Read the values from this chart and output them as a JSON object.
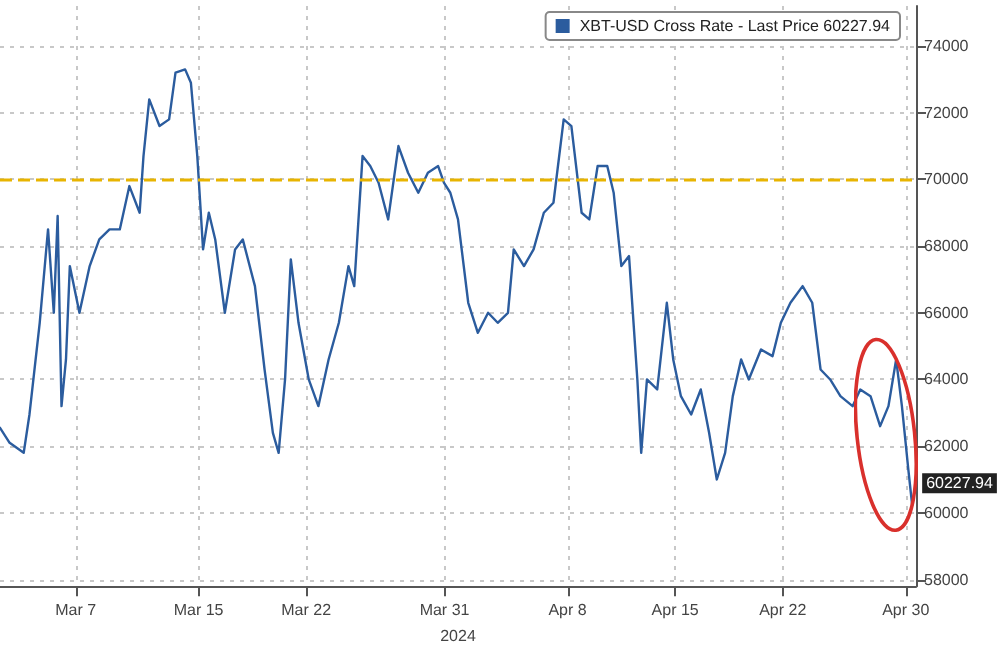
{
  "chart_data": {
    "type": "line",
    "xlabel": "2024",
    "x": [
      "2024-03-02T02:00",
      "2024-03-02T17:00",
      "2024-03-03T15:00",
      "2024-03-04T00:00",
      "2024-03-04T16:00",
      "2024-03-05T05:00",
      "2024-03-05T14:00",
      "2024-03-05T20:00",
      "2024-03-06T02:00",
      "2024-03-06T09:00",
      "2024-03-06T15:00",
      "2024-03-07T06:00",
      "2024-03-07T22:00",
      "2024-03-08T13:00",
      "2024-03-09T05:00",
      "2024-03-09T21:00",
      "2024-03-10T12:00",
      "2024-03-11T04:00",
      "2024-03-11T10:00",
      "2024-03-11T19:00",
      "2024-03-12T11:00",
      "2024-03-13T02:00",
      "2024-03-13T12:00",
      "2024-03-14T03:00",
      "2024-03-14T12:00",
      "2024-03-14T22:00",
      "2024-03-15T07:00",
      "2024-03-15T16:00",
      "2024-03-16T02:00",
      "2024-03-16T17:00",
      "2024-03-17T09:00",
      "2024-03-17T21:00",
      "2024-03-18T16:00",
      "2024-03-19T07:00",
      "2024-03-19T20:00",
      "2024-03-20T05:00",
      "2024-03-20T15:00",
      "2024-03-21T00:00",
      "2024-03-21T12:00",
      "2024-03-22T04:00",
      "2024-03-22T19:00",
      "2024-03-23T11:00",
      "2024-03-24T03:00",
      "2024-03-24T18:00",
      "2024-03-25T03:00",
      "2024-03-25T16:00",
      "2024-03-26T04:00",
      "2024-03-26T17:00",
      "2024-03-27T08:00",
      "2024-03-28T00:00",
      "2024-03-28T15:00",
      "2024-03-29T07:00",
      "2024-03-29T22:00",
      "2024-03-30T14:00",
      "2024-03-30T23:00",
      "2024-03-31T09:00",
      "2024-03-31T21:00",
      "2024-04-01T13:00",
      "2024-04-02T04:00",
      "2024-04-02T20:00",
      "2024-04-03T11:00",
      "2024-04-04T03:00",
      "2024-04-04T12:00",
      "2024-04-05T04:00",
      "2024-04-05T19:00",
      "2024-04-06T11:00",
      "2024-04-07T02:00",
      "2024-04-07T18:00",
      "2024-04-08T06:00",
      "2024-04-08T22:00",
      "2024-04-09T10:00",
      "2024-04-09T23:00",
      "2024-04-10T14:00",
      "2024-04-11T00:00",
      "2024-04-11T12:00",
      "2024-04-12T00:00",
      "2024-04-12T13:00",
      "2024-04-12T19:00",
      "2024-04-13T04:00",
      "2024-04-13T20:00",
      "2024-04-14T11:00",
      "2024-04-14T21:00",
      "2024-04-15T09:00",
      "2024-04-16T01:00",
      "2024-04-16T16:00",
      "2024-04-17T05:00",
      "2024-04-17T17:00",
      "2024-04-18T06:00",
      "2024-04-18T18:00",
      "2024-04-19T07:00",
      "2024-04-19T19:00",
      "2024-04-20T14:00",
      "2024-04-21T08:00",
      "2024-04-21T21:00",
      "2024-04-22T12:00",
      "2024-04-23T07:00",
      "2024-04-23T22:00",
      "2024-04-24T11:00",
      "2024-04-25T02:00",
      "2024-04-25T18:00",
      "2024-04-26T13:00",
      "2024-04-27T01:00",
      "2024-04-27T17:00",
      "2024-04-28T08:00",
      "2024-04-28T21:00",
      "2024-04-29T09:00",
      "2024-04-29T18:00",
      "2024-04-30T04:00",
      "2024-04-30T10:00"
    ],
    "series": [
      {
        "name": "XBT-USD Cross Rate - Last Price 60227.94",
        "color": "#2b5c9e",
        "values": [
          62550,
          62100,
          61800,
          62950,
          65700,
          68500,
          66000,
          68900,
          63200,
          64600,
          67400,
          66000,
          67400,
          68200,
          68500,
          68500,
          69800,
          69000,
          70700,
          72400,
          71600,
          71800,
          73200,
          73300,
          72900,
          70700,
          67900,
          69000,
          68200,
          66000,
          67900,
          68200,
          66800,
          64300,
          62400,
          61800,
          64000,
          67600,
          65700,
          64000,
          63200,
          64600,
          65700,
          67400,
          66800,
          70700,
          70400,
          69900,
          68800,
          71000,
          70200,
          69600,
          70200,
          70400,
          69900,
          69600,
          68800,
          66300,
          65400,
          66000,
          65700,
          66000,
          67900,
          67400,
          67900,
          69000,
          69300,
          71800,
          71600,
          69000,
          68800,
          70400,
          70400,
          69600,
          67400,
          67700,
          64000,
          61800,
          64000,
          63700,
          66300,
          64600,
          63500,
          62950,
          63700,
          62400,
          61000,
          61800,
          63500,
          64600,
          64000,
          64900,
          64700,
          65700,
          66300,
          66800,
          66300,
          64300,
          64000,
          63500,
          63200,
          63700,
          63500,
          62600,
          63200,
          64600,
          63200,
          61300,
          60227.94
        ]
      }
    ],
    "xlim": [
      "2024-03-02T02:00",
      "2024-04-30T16:00"
    ],
    "xticks": [
      {
        "value": "2024-03-07",
        "label": "Mar 7"
      },
      {
        "value": "2024-03-15",
        "label": "Mar 15"
      },
      {
        "value": "2024-03-22",
        "label": "Mar 22"
      },
      {
        "value": "2024-03-31",
        "label": "Mar 31"
      },
      {
        "value": "2024-04-08",
        "label": "Apr 8"
      },
      {
        "value": "2024-04-15",
        "label": "Apr 15"
      },
      {
        "value": "2024-04-22",
        "label": "Apr 22"
      },
      {
        "value": "2024-04-30",
        "label": "Apr 30"
      }
    ],
    "ylim": [
      57800,
      75200
    ],
    "yticks": [
      58000,
      60000,
      62000,
      64000,
      66000,
      68000,
      70000,
      72000,
      74000
    ],
    "ref_lines": [
      {
        "axis": "y",
        "value": 70000,
        "color": "#e8b400",
        "line_style": "dashed"
      }
    ],
    "annotations": [
      {
        "text": "60227.94",
        "x": "2024-04-30T10:00",
        "y": 60227.94
      }
    ],
    "grid": true,
    "legend": "top right",
    "marker": "none",
    "line_style": "solid"
  }
}
